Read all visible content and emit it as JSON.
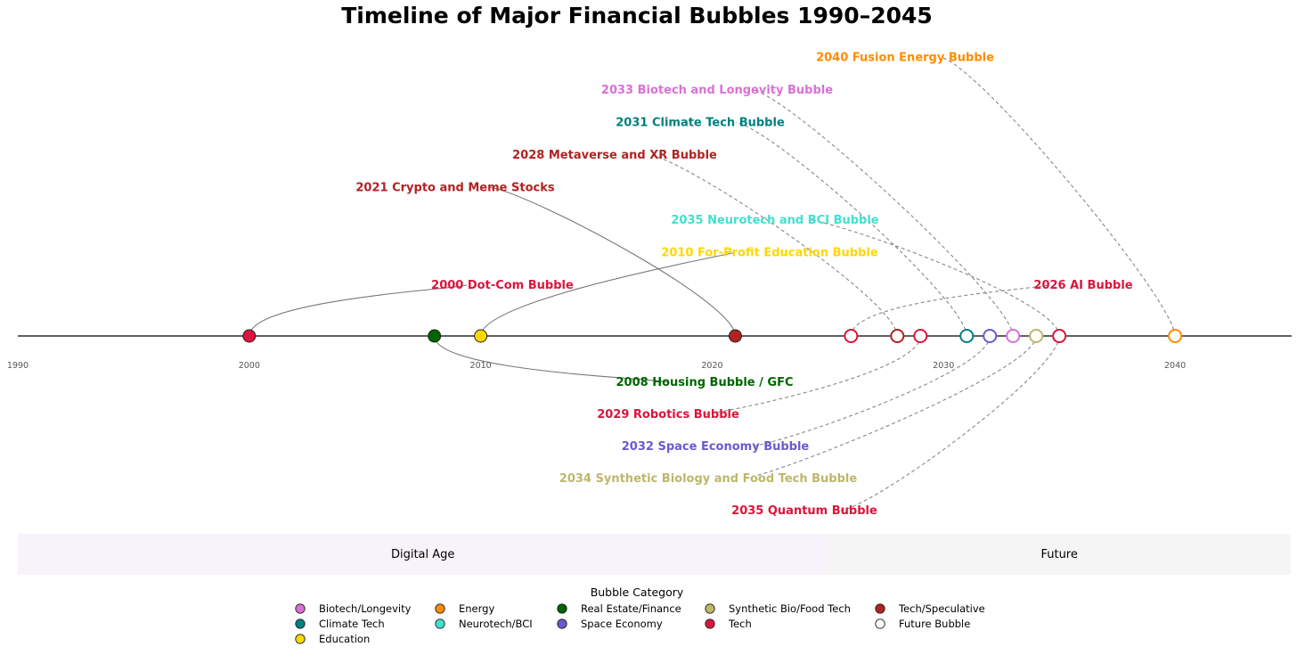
{
  "chart_data": {
    "type": "timeline",
    "title": "Timeline of Major Financial Bubbles 1990–2045",
    "xlim": [
      1990,
      2045
    ],
    "ticks": [
      "1990",
      "2000",
      "2010",
      "2020",
      "2030",
      "2040"
    ],
    "tick_values": [
      1990,
      2000,
      2010,
      2020,
      2030,
      2040
    ],
    "eras": [
      {
        "name": "Digital Age",
        "start": 1990,
        "end": 2025,
        "color": "#f8f3fa"
      },
      {
        "name": "Future",
        "start": 2025,
        "end": 2045,
        "color": "#f5f5f5"
      }
    ],
    "events": [
      {
        "year": 2000,
        "label": "2000 Dot-Com Bubble",
        "category": "Tech",
        "color": "#dc143c",
        "future": false,
        "side": "above",
        "tier": 1
      },
      {
        "year": 2008,
        "label": "2008 Housing Bubble / GFC",
        "category": "Real Estate/Finance",
        "color": "#006400",
        "future": false,
        "side": "below",
        "tier": 1
      },
      {
        "year": 2010,
        "label": "2010 For-Profit Education Bubble",
        "category": "Education",
        "color": "#ffd700",
        "future": false,
        "side": "above",
        "tier": 2
      },
      {
        "year": 2021,
        "label": "2021 Crypto and Meme Stocks",
        "category": "Tech/Speculative",
        "color": "#b22222",
        "future": false,
        "side": "above",
        "tier": 4
      },
      {
        "year": 2026,
        "label": "2026 AI Bubble",
        "category": "Tech",
        "color": "#dc143c",
        "future": true,
        "side": "above",
        "tier": 1
      },
      {
        "year": 2028,
        "label": "2028 Metaverse and XR Bubble",
        "category": "Tech/Speculative",
        "color": "#b22222",
        "future": true,
        "side": "above",
        "tier": 5
      },
      {
        "year": 2029,
        "label": "2029 Robotics Bubble",
        "category": "Tech",
        "color": "#dc143c",
        "future": true,
        "side": "below",
        "tier": 2
      },
      {
        "year": 2031,
        "label": "2031 Climate Tech Bubble",
        "category": "Climate Tech",
        "color": "#008080",
        "future": true,
        "side": "above",
        "tier": 6
      },
      {
        "year": 2032,
        "label": "2032 Space Economy Bubble",
        "category": "Space Economy",
        "color": "#6a5acd",
        "future": true,
        "side": "below",
        "tier": 3
      },
      {
        "year": 2033,
        "label": "2033 Biotech and Longevity Bubble",
        "category": "Biotech/Longevity",
        "color": "#da70d6",
        "future": true,
        "side": "above",
        "tier": 7
      },
      {
        "year": 2034,
        "label": "2034 Synthetic Biology and Food Tech Bubble",
        "category": "Synthetic Bio/Food Tech",
        "color": "#bdb76b",
        "future": true,
        "side": "below",
        "tier": 4
      },
      {
        "year": 2035,
        "label": "2035 Neurotech and BCI Bubble",
        "category": "Neurotech/BCI",
        "color": "#40e0d0",
        "future": true,
        "side": "above",
        "tier": 3
      },
      {
        "year": 2035,
        "label": "2035 Quantum Bubble",
        "category": "Tech",
        "color": "#dc143c",
        "future": true,
        "side": "below",
        "tier": 5
      },
      {
        "year": 2040,
        "label": "2040 Fusion Energy Bubble",
        "category": "Energy",
        "color": "#ff8c00",
        "future": true,
        "side": "above",
        "tier": 8
      }
    ],
    "legend": {
      "title": "Bubble Category",
      "placement": "bottom-center",
      "items": [
        {
          "label": "Biotech/Longevity",
          "color": "#da70d6"
        },
        {
          "label": "Climate Tech",
          "color": "#008080"
        },
        {
          "label": "Education",
          "color": "#ffd700"
        },
        {
          "label": "Energy",
          "color": "#ff8c00"
        },
        {
          "label": "Neurotech/BCI",
          "color": "#40e0d0"
        },
        {
          "label": "Real Estate/Finance",
          "color": "#006400"
        },
        {
          "label": "Space Economy",
          "color": "#6a5acd"
        },
        {
          "label": "Synthetic Bio/Food Tech",
          "color": "#bdb76b"
        },
        {
          "label": "Tech",
          "color": "#dc143c"
        },
        {
          "label": "Tech/Speculative",
          "color": "#b22222"
        },
        {
          "label": "Future Bubble",
          "color": "#ffffff"
        }
      ]
    }
  }
}
